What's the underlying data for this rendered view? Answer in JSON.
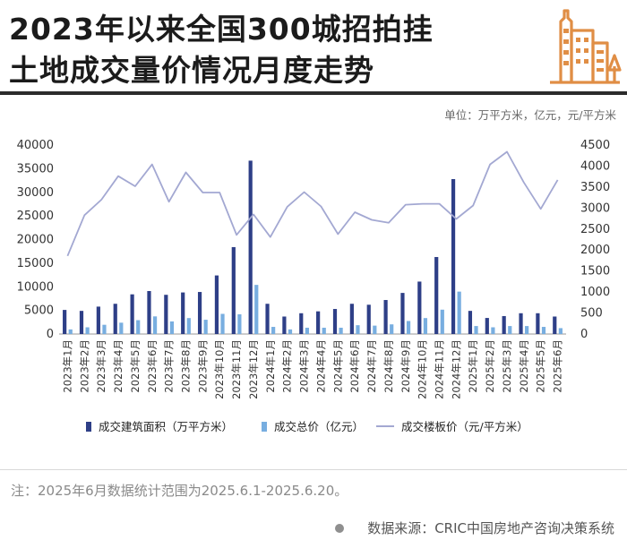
{
  "header": {
    "title_line1": "2023年以来全国300城招拍挂",
    "title_line2": "土地成交量价情况月度走势"
  },
  "unit_text": "单位：万平方米，亿元，元/平方米",
  "note_text": "注：2025年6月数据统计范围为2025.6.1-2025.6.20。",
  "source_text": "数据来源：CRIC中国房地产咨询决策系统",
  "colors": {
    "area_bar": "#2e3f87",
    "total_bar": "#78aee0",
    "price_line": "#a3a8d2",
    "title": "#1b1b1b",
    "logo": "#e08e45"
  },
  "icons": {
    "logo": "buildings-icon"
  },
  "chart_data": {
    "type": "bar+line",
    "title": "2023年以来全国300城招拍挂土地成交量价情况月度走势",
    "categories": [
      "2023年1月",
      "2023年2月",
      "2023年3月",
      "2023年4月",
      "2023年5月",
      "2023年6月",
      "2023年7月",
      "2023年8月",
      "2023年9月",
      "2023年10月",
      "2023年11月",
      "2023年12月",
      "2024年1月",
      "2024年2月",
      "2024年3月",
      "2024年4月",
      "2024年5月",
      "2024年6月",
      "2024年7月",
      "2024年8月",
      "2024年9月",
      "2024年10月",
      "2024年11月",
      "2024年12月",
      "2025年1月",
      "2025年2月",
      "2025年3月",
      "2025年4月",
      "2025年5月",
      "2025年6月"
    ],
    "series": [
      {
        "name": "成交建筑面积（万平方米）",
        "type": "bar",
        "axis": "left",
        "values": [
          5100,
          4900,
          5800,
          6400,
          8400,
          9100,
          8300,
          8800,
          8900,
          12400,
          18400,
          36700,
          6400,
          3700,
          4400,
          4800,
          5300,
          6400,
          6200,
          7200,
          8700,
          11100,
          16300,
          32800,
          4900,
          3400,
          3800,
          4400,
          4400,
          3700
        ]
      },
      {
        "name": "成交总价（亿元）",
        "type": "bar",
        "axis": "right",
        "values": [
          110,
          160,
          220,
          270,
          330,
          420,
          300,
          380,
          340,
          480,
          470,
          1170,
          170,
          110,
          150,
          150,
          150,
          210,
          200,
          230,
          310,
          380,
          580,
          1010,
          190,
          160,
          190,
          190,
          170,
          140
        ]
      },
      {
        "name": "成交楼板价（元/平方米）",
        "type": "line",
        "axis": "right",
        "values": [
          1860,
          2830,
          3200,
          3760,
          3520,
          4040,
          3150,
          3850,
          3370,
          3370,
          2360,
          2850,
          2310,
          3030,
          3380,
          3040,
          2380,
          2900,
          2720,
          2650,
          3080,
          3100,
          3100,
          2740,
          3060,
          4040,
          4340,
          3610,
          2980,
          3670
        ]
      }
    ],
    "y_left": {
      "ylim": [
        0,
        40000
      ],
      "ticks": [
        0,
        5000,
        10000,
        15000,
        20000,
        25000,
        30000,
        35000,
        40000
      ]
    },
    "y_right": {
      "ylim": [
        0,
        4500
      ],
      "ticks": [
        0,
        500,
        1000,
        1500,
        2000,
        2500,
        3000,
        3500,
        4000,
        4500
      ]
    },
    "legend": {
      "position": "bottom",
      "items": [
        "成交建筑面积（万平方米）",
        "成交总价（亿元）",
        "成交楼板价（元/平方米）"
      ]
    }
  }
}
